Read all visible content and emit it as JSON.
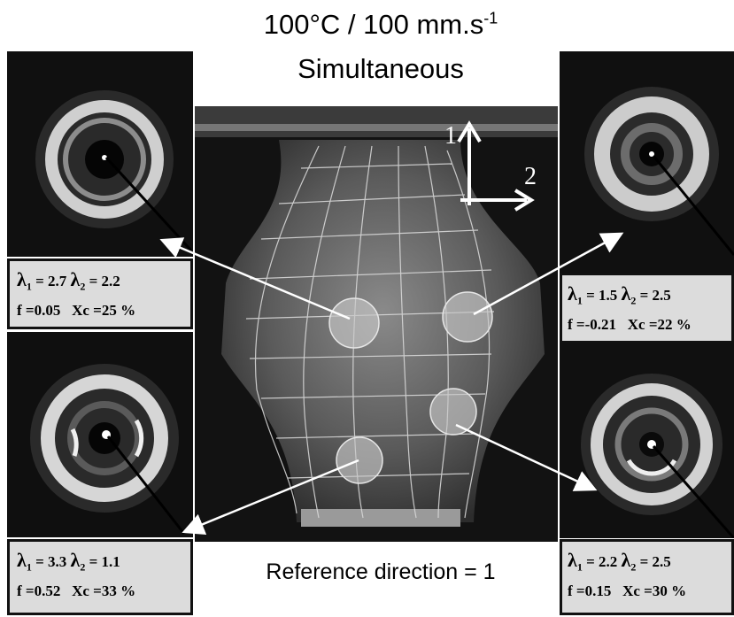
{
  "header": {
    "line1": "100°C / 100 mm.s",
    "line1_sup": "-1",
    "line2": "Simultaneous"
  },
  "axes": {
    "axis1": "1",
    "axis2": "2"
  },
  "boxes": [
    {
      "id": "top-left",
      "lambda1": "2.7",
      "lambda2": "2.2",
      "f": "0.05",
      "xc": "25 %"
    },
    {
      "id": "top-right",
      "lambda1": "1.5",
      "lambda2": "2.5",
      "f": "-0.21",
      "xc": "22 %"
    },
    {
      "id": "bottom-left",
      "lambda1": "3.3",
      "lambda2": "1.1",
      "f": "0.52",
      "xc": "33 %"
    },
    {
      "id": "bottom-right",
      "lambda1": "2.2",
      "lambda2": "2.5",
      "f": "0.15",
      "xc": "30 %"
    }
  ],
  "labels": {
    "lambda": "λ",
    "sub1": "1",
    "sub2": "2",
    "f_prefix": "f =",
    "xc_prefix": "Xc ="
  },
  "footer": {
    "reference": "Reference direction = 1"
  }
}
